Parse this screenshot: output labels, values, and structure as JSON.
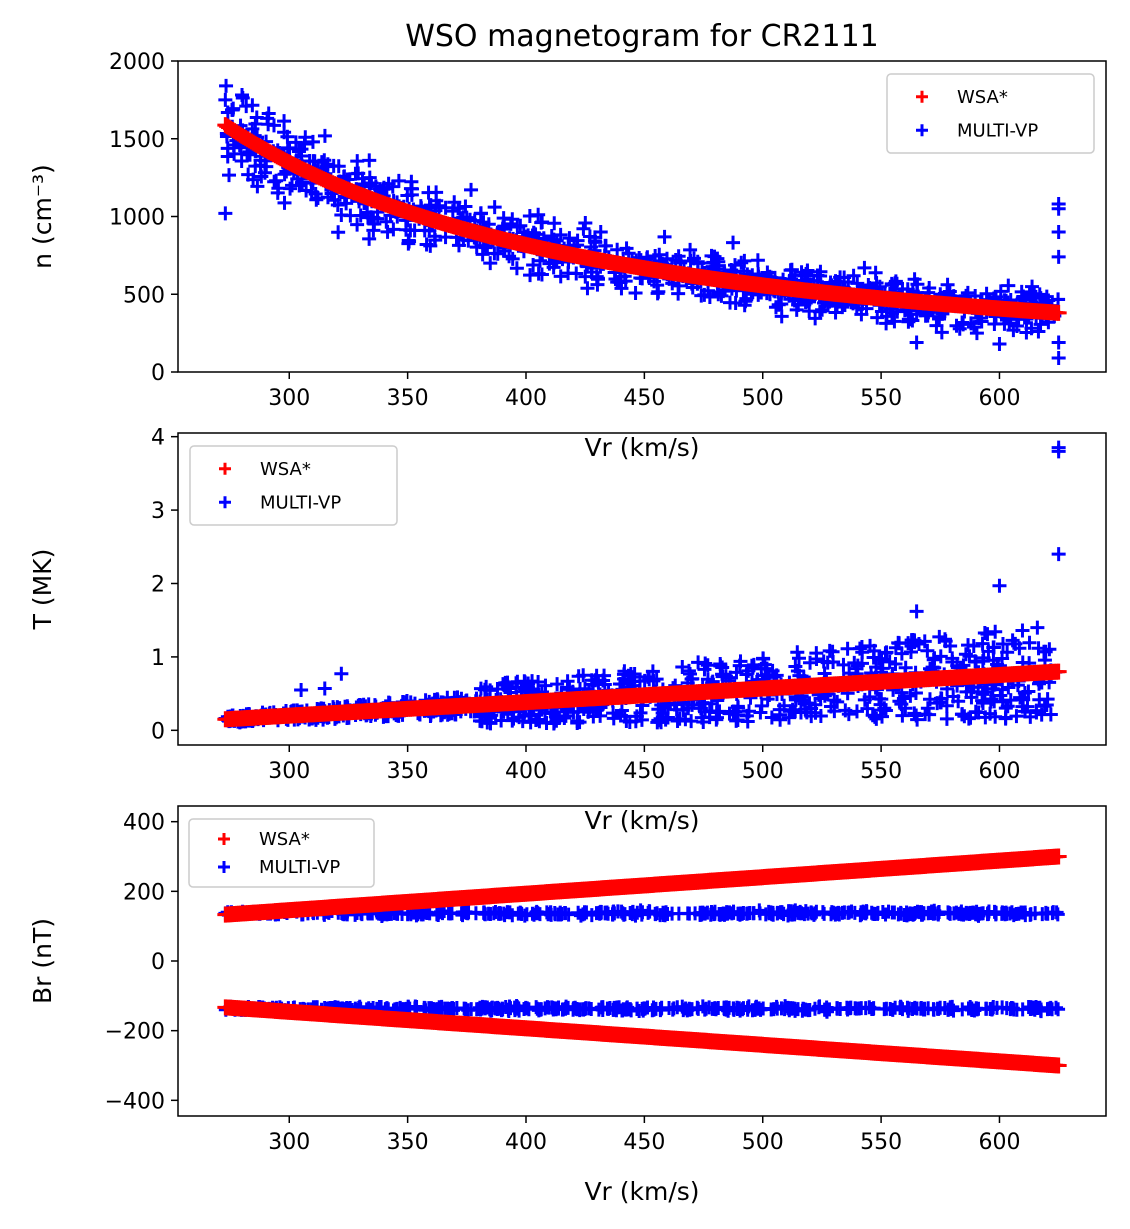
{
  "figure_title": "WSO magnetogram for CR2111",
  "colors": {
    "wsa": "#ff0000",
    "multivp": "#0000ff",
    "axes": "#000000",
    "legend_border": "#cccccc"
  },
  "legend": {
    "entries": [
      "WSA*",
      "MULTI-VP"
    ]
  },
  "chart_data": [
    {
      "type": "scatter",
      "xlabel": "Vr (km/s)",
      "ylabel": "n (cm⁻³)",
      "xlim": [
        253,
        645
      ],
      "ylim": [
        0,
        2000
      ],
      "xticks": [
        300,
        350,
        400,
        450,
        500,
        550,
        600
      ],
      "yticks": [
        0,
        500,
        1000,
        1500,
        2000
      ],
      "legend_location": "top-right",
      "series": [
        {
          "name": "WSA*",
          "marker": "plus",
          "relation": "n = 1.6e7 / (Vr - 15)^1.66 (approx. fitted curve)",
          "x_range": [
            273,
            625
          ],
          "y_range": [
            300,
            1580
          ]
        },
        {
          "name": "MULTI-VP",
          "marker": "plus",
          "description": "scatter around WSA* curve",
          "x_range": [
            273,
            625
          ],
          "outliers": [
            [
              273,
              1750
            ],
            [
              273,
              1020
            ],
            [
              310,
              1480
            ],
            [
              322,
              1010
            ],
            [
              358,
              820
            ],
            [
              625,
              1080
            ],
            [
              625,
              1050
            ],
            [
              625,
              900
            ],
            [
              625,
              740
            ],
            [
              625,
              90
            ],
            [
              625,
              190
            ],
            [
              600,
              180
            ],
            [
              565,
              190
            ]
          ]
        }
      ]
    },
    {
      "type": "scatter",
      "xlabel": "Vr (km/s)",
      "ylabel": "T (MK)",
      "xlim": [
        253,
        645
      ],
      "ylim": [
        -0.2,
        4.05
      ],
      "xticks": [
        300,
        350,
        400,
        450,
        500,
        550,
        600
      ],
      "yticks": [
        0,
        1,
        2,
        3,
        4
      ],
      "legend_location": "top-left",
      "series": [
        {
          "name": "WSA*",
          "marker": "plus",
          "relation": "linear",
          "x_range": [
            273,
            625
          ],
          "y_range": [
            0.15,
            0.8
          ]
        },
        {
          "name": "MULTI-VP",
          "marker": "plus",
          "description": "broad scatter from 0 to ~1.2 MK",
          "x_range": [
            273,
            625
          ],
          "outliers": [
            [
              625,
              3.85
            ],
            [
              625,
              3.8
            ],
            [
              625,
              2.4
            ],
            [
              600,
              1.97
            ],
            [
              565,
              1.62
            ],
            [
              322,
              0.77
            ],
            [
              315,
              0.57
            ],
            [
              305,
              0.55
            ]
          ]
        }
      ]
    },
    {
      "type": "scatter",
      "xlabel": "Vr (km/s)",
      "ylabel": "Br (nT)",
      "xlim": [
        253,
        645
      ],
      "ylim": [
        -445,
        445
      ],
      "xticks": [
        300,
        350,
        400,
        450,
        500,
        550,
        600
      ],
      "yticks": [
        -400,
        -200,
        0,
        200,
        400
      ],
      "legend_location": "top-left",
      "series": [
        {
          "name": "WSA*",
          "marker": "plus",
          "relation": "two linear branches ±",
          "x_range": [
            273,
            625
          ],
          "y_range": [
            133,
            300
          ]
        },
        {
          "name": "MULTI-VP",
          "marker": "plus",
          "description": "two flat bands at ~±137 nT",
          "x_range": [
            273,
            625
          ],
          "band": [
            -140,
            140
          ]
        }
      ]
    }
  ]
}
